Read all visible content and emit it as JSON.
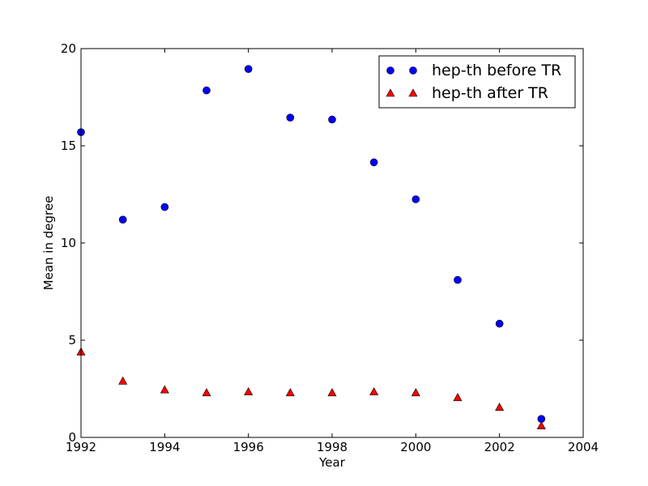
{
  "chart_data": {
    "type": "scatter",
    "title": "",
    "xlabel": "Year",
    "ylabel": "Mean in degree",
    "xlim": [
      1992,
      2004
    ],
    "ylim": [
      0,
      20
    ],
    "x_ticks": [
      "1992",
      "1994",
      "1996",
      "1998",
      "2000",
      "2002",
      "2004"
    ],
    "y_ticks": [
      "0",
      "5",
      "10",
      "15",
      "20"
    ],
    "grid": false,
    "legend_position": "top-right",
    "series": [
      {
        "name": "hep-th before TR",
        "marker": "circle",
        "color": "#0000ff",
        "x": [
          1992,
          1993,
          1994,
          1995,
          1996,
          1997,
          1998,
          1999,
          2000,
          2001,
          2002,
          2003
        ],
        "y": [
          15.7,
          11.2,
          11.85,
          17.85,
          18.95,
          16.45,
          16.35,
          14.15,
          12.25,
          8.1,
          5.85,
          0.95
        ]
      },
      {
        "name": "hep-th after TR",
        "marker": "triangle",
        "color": "#ff0000",
        "x": [
          1992,
          1993,
          1994,
          1995,
          1996,
          1997,
          1998,
          1999,
          2000,
          2001,
          2002,
          2003
        ],
        "y": [
          4.4,
          2.9,
          2.45,
          2.3,
          2.35,
          2.3,
          2.3,
          2.35,
          2.3,
          2.05,
          1.55,
          0.6
        ]
      }
    ]
  }
}
